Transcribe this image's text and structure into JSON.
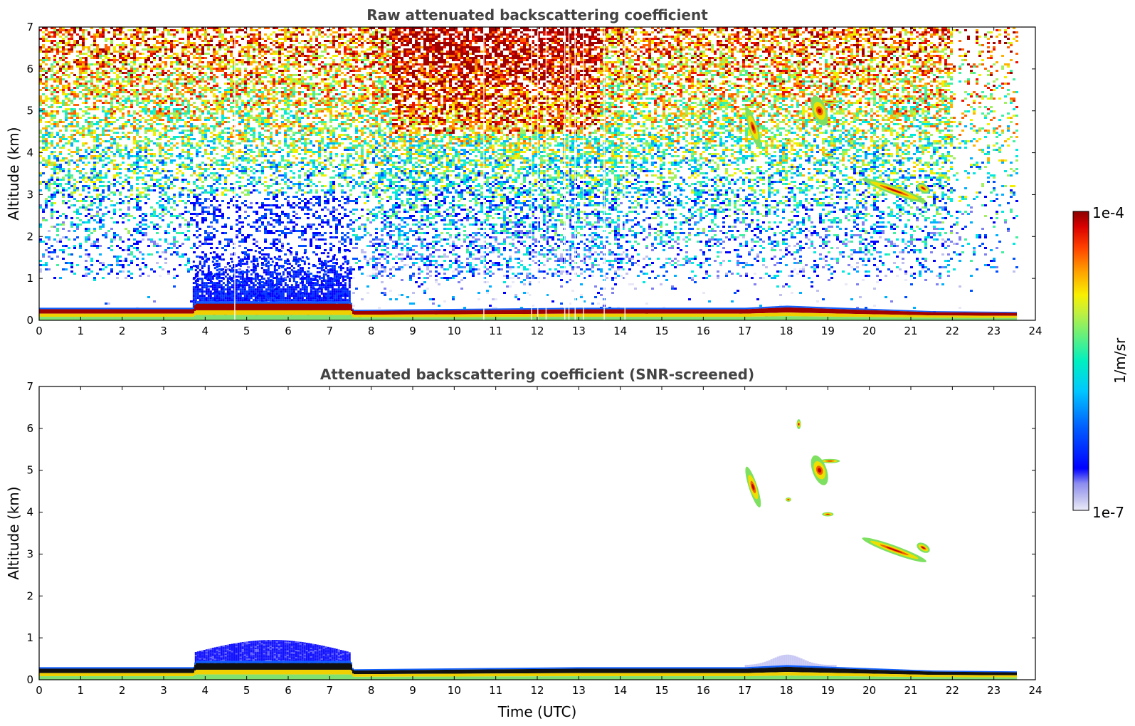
{
  "chart_data": [
    {
      "type": "heatmap",
      "title": "Raw attenuated backscattering coefficient",
      "xlabel": "",
      "ylabel": "Altitude (km)",
      "xlim": [
        0,
        24
      ],
      "ylim": [
        0,
        7
      ],
      "xticks": [
        0,
        1,
        2,
        3,
        4,
        5,
        6,
        7,
        8,
        9,
        10,
        11,
        12,
        13,
        14,
        15,
        16,
        17,
        18,
        19,
        20,
        21,
        22,
        23,
        24
      ],
      "yticks": [
        0,
        1,
        2,
        3,
        4,
        5,
        6,
        7
      ],
      "data_end_time": 23.55,
      "boundary_layer_top_km": [
        {
          "t": 0,
          "z": 0.3
        },
        {
          "t": 3.7,
          "z": 0.3
        },
        {
          "t": 3.75,
          "z": 0.45
        },
        {
          "t": 7.5,
          "z": 0.45
        },
        {
          "t": 7.55,
          "z": 0.25
        },
        {
          "t": 13,
          "z": 0.3
        },
        {
          "t": 17,
          "z": 0.3
        },
        {
          "t": 18,
          "z": 0.35
        },
        {
          "t": 21.5,
          "z": 0.22
        },
        {
          "t": 23.55,
          "z": 0.2
        }
      ],
      "aerosol_layer": {
        "t_start": 3.7,
        "t_end": 7.5,
        "z_top_km": 1.2
      },
      "cloud_features": [
        {
          "t_center": 17.2,
          "z_center_km": 4.6,
          "note": "tilted streak 17.0-17.4 h, 4.1-5.0 km"
        },
        {
          "t_center": 18.8,
          "z_center_km": 5.0,
          "note": "18.5-19.0 h, 4.8-5.3 km"
        },
        {
          "t_center": 19.0,
          "z_center_km": 3.95
        },
        {
          "t_center": 20.6,
          "z_center_km": 3.1,
          "note": "descending streak 19.9-21.3 h, 3.5-2.8 km"
        },
        {
          "t_center": 21.3,
          "z_center_km": 3.15
        },
        {
          "t_center": 18.3,
          "z_center_km": 6.1
        }
      ]
    },
    {
      "type": "heatmap",
      "title": "Attenuated backscattering coefficient (SNR-screened)",
      "xlabel": "Time (UTC)",
      "ylabel": "Altitude (km)",
      "xlim": [
        0,
        24
      ],
      "ylim": [
        0,
        7
      ],
      "xticks": [
        0,
        1,
        2,
        3,
        4,
        5,
        6,
        7,
        8,
        9,
        10,
        11,
        12,
        13,
        14,
        15,
        16,
        17,
        18,
        19,
        20,
        21,
        22,
        23,
        24
      ],
      "yticks": [
        0,
        1,
        2,
        3,
        4,
        5,
        6,
        7
      ],
      "data_end_time": 23.55
    }
  ],
  "colorbar": {
    "min_label": "1e-7",
    "max_label": "1e-4",
    "label": "1/m/sr",
    "scale": "log",
    "colormap": "jet",
    "colors": [
      "#e8e8f8",
      "#c0c0f0",
      "#8080f0",
      "#0000ff",
      "#0050ff",
      "#00b0ff",
      "#00e8e0",
      "#40f0a0",
      "#a0f060",
      "#f0f000",
      "#ffb000",
      "#ff6000",
      "#ee1000",
      "#a00000"
    ]
  }
}
